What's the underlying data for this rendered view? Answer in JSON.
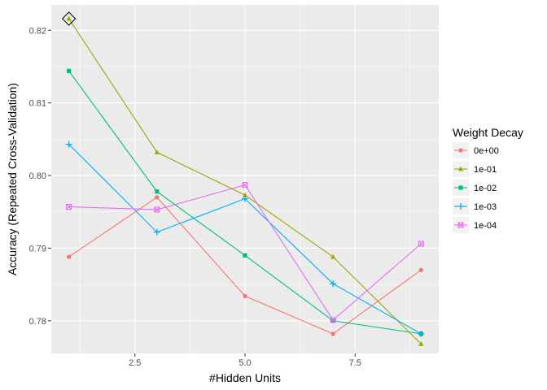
{
  "chart_data": {
    "type": "line",
    "title": "",
    "xlabel": "#Hidden Units",
    "ylabel": "Accuracy (Repeated Cross-Validation)",
    "xlim": [
      0.6,
      9.4
    ],
    "ylim": [
      0.7755,
      0.8235
    ],
    "x_ticks": [
      2.5,
      5.0,
      7.5
    ],
    "x_tick_labels": [
      "2.5",
      "5.0",
      "7.5"
    ],
    "y_ticks": [
      0.78,
      0.79,
      0.8,
      0.81,
      0.82
    ],
    "y_tick_labels": [
      "0.78",
      "0.79",
      "0.80",
      "0.81",
      "0.82"
    ],
    "grid": true,
    "x": [
      1,
      3,
      5,
      7,
      9
    ],
    "legend": {
      "title": "Weight Decay",
      "position": "right"
    },
    "series": [
      {
        "name": "0e+00",
        "color": "#F8766D",
        "marker": "circle",
        "values": [
          0.7888,
          0.797,
          0.7834,
          0.7782,
          0.787
        ]
      },
      {
        "name": "1e-01",
        "color": "#A3A500",
        "marker": "triangle",
        "values": [
          0.8216,
          0.8032,
          0.7973,
          0.7888,
          0.7768
        ]
      },
      {
        "name": "1e-02",
        "color": "#00BF7D",
        "marker": "square",
        "values": [
          0.8144,
          0.7978,
          0.789,
          0.78,
          0.7782
        ]
      },
      {
        "name": "1e-03",
        "color": "#00B0F6",
        "marker": "plus",
        "values": [
          0.8043,
          0.7922,
          0.7968,
          0.7851,
          0.7782
        ]
      },
      {
        "name": "1e-04",
        "color": "#E76BF3",
        "marker": "boxed-x",
        "values": [
          0.7957,
          0.7953,
          0.7987,
          0.7801,
          0.7906
        ]
      }
    ],
    "annotations": [
      {
        "type": "highlight",
        "marker": "diamond",
        "x": 1,
        "y": 0.8216,
        "series": "1e-01"
      }
    ]
  }
}
